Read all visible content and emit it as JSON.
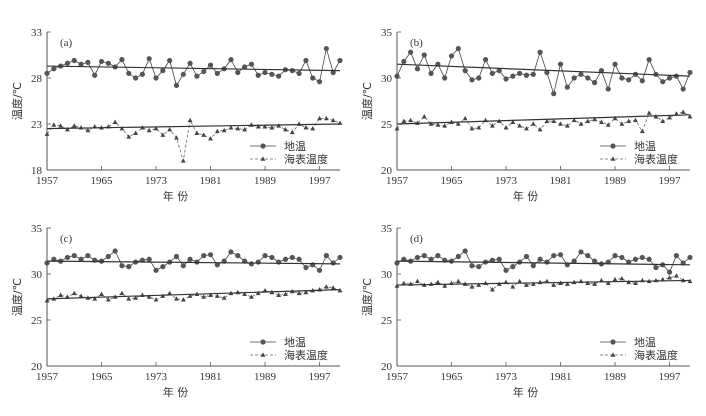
{
  "chart_data": [
    {
      "type": "line",
      "panel_label": "(a)",
      "ylabel": "温度/℃",
      "xlabel": "年  份",
      "ylim": [
        18,
        33
      ],
      "yticks": [
        18,
        23,
        28,
        33
      ],
      "xticks": [
        1957,
        1965,
        1973,
        1981,
        1989,
        1997
      ],
      "x": [
        1957,
        1958,
        1959,
        1960,
        1961,
        1962,
        1963,
        1964,
        1965,
        1966,
        1967,
        1968,
        1969,
        1970,
        1971,
        1972,
        1973,
        1974,
        1975,
        1976,
        1977,
        1978,
        1979,
        1980,
        1981,
        1982,
        1983,
        1984,
        1985,
        1986,
        1987,
        1988,
        1989,
        1990,
        1991,
        1992,
        1993,
        1994,
        1995,
        1996,
        1997,
        1998,
        1999,
        2000
      ],
      "series": [
        {
          "name": "地温",
          "marker": "circle",
          "trend": [
            29.3,
            28.8
          ],
          "values": [
            28.5,
            29.0,
            29.3,
            29.6,
            29.9,
            29.5,
            29.7,
            28.3,
            29.8,
            29.6,
            29.2,
            30.0,
            28.5,
            28.0,
            28.4,
            30.1,
            28.0,
            28.8,
            29.9,
            27.2,
            28.4,
            29.6,
            28.2,
            28.7,
            29.4,
            28.5,
            29.0,
            30.0,
            28.6,
            29.2,
            29.5,
            28.3,
            28.6,
            28.4,
            28.2,
            28.9,
            28.8,
            28.5,
            29.9,
            28.0,
            27.6,
            31.2,
            28.6,
            29.9
          ]
        },
        {
          "name": "海表温度",
          "marker": "triangle",
          "trend": [
            22.5,
            23.0
          ],
          "values": [
            21.9,
            22.9,
            22.8,
            22.4,
            22.8,
            22.6,
            22.3,
            22.7,
            22.6,
            22.7,
            23.2,
            22.5,
            21.6,
            22.0,
            22.6,
            22.3,
            22.5,
            21.8,
            22.4,
            21.5,
            19.0,
            23.4,
            22.0,
            21.8,
            21.4,
            22.2,
            22.3,
            22.6,
            22.5,
            22.4,
            22.9,
            22.7,
            22.7,
            22.6,
            22.8,
            22.4,
            22.1,
            23.0,
            22.6,
            22.5,
            23.6,
            23.6,
            23.4,
            23.1
          ]
        }
      ]
    },
    {
      "type": "line",
      "panel_label": "(b)",
      "ylabel": "温度/℃",
      "xlabel": "年  份",
      "ylim": [
        20,
        35
      ],
      "yticks": [
        20,
        25,
        30,
        35
      ],
      "xticks": [
        1957,
        1965,
        1973,
        1981,
        1989,
        1997
      ],
      "x": [
        1957,
        1958,
        1959,
        1960,
        1961,
        1962,
        1963,
        1964,
        1965,
        1966,
        1967,
        1968,
        1969,
        1970,
        1971,
        1972,
        1973,
        1974,
        1975,
        1976,
        1977,
        1978,
        1979,
        1980,
        1981,
        1982,
        1983,
        1984,
        1985,
        1986,
        1987,
        1988,
        1989,
        1990,
        1991,
        1992,
        1993,
        1994,
        1995,
        1996,
        1997,
        1998,
        1999,
        2000
      ],
      "series": [
        {
          "name": "地温",
          "marker": "circle",
          "trend": [
            31.5,
            30.2
          ],
          "values": [
            30.2,
            31.8,
            32.8,
            31.0,
            32.5,
            30.5,
            31.5,
            30.0,
            32.4,
            33.2,
            30.8,
            29.8,
            30.0,
            32.0,
            30.5,
            30.8,
            29.9,
            30.2,
            30.5,
            30.3,
            30.4,
            32.8,
            30.6,
            28.3,
            31.5,
            29.0,
            30.0,
            30.4,
            30.0,
            29.5,
            30.8,
            28.8,
            31.5,
            30.0,
            29.8,
            30.4,
            29.7,
            32.0,
            30.4,
            29.6,
            30.0,
            30.2,
            28.8,
            30.6
          ]
        },
        {
          "name": "海表温度",
          "marker": "triangle",
          "trend": [
            25.0,
            26.0
          ],
          "values": [
            24.5,
            25.3,
            25.4,
            25.1,
            25.8,
            25.0,
            24.9,
            24.8,
            25.2,
            25.0,
            25.6,
            24.5,
            24.6,
            25.4,
            24.8,
            25.3,
            24.6,
            25.2,
            24.8,
            24.5,
            25.0,
            24.4,
            25.3,
            25.3,
            25.0,
            24.8,
            25.4,
            25.0,
            25.3,
            25.5,
            25.2,
            24.9,
            25.6,
            25.0,
            25.3,
            25.4,
            24.2,
            26.2,
            25.8,
            25.3,
            25.7,
            26.1,
            26.3,
            25.8
          ]
        }
      ]
    },
    {
      "type": "line",
      "panel_label": "(c)",
      "ylabel": "温度/℃",
      "xlabel": "年  份",
      "ylim": [
        20,
        35
      ],
      "yticks": [
        20,
        25,
        30,
        35
      ],
      "xticks": [
        1957,
        1965,
        1973,
        1981,
        1989,
        1997
      ],
      "x": [
        1957,
        1958,
        1959,
        1960,
        1961,
        1962,
        1963,
        1964,
        1965,
        1966,
        1967,
        1968,
        1969,
        1970,
        1971,
        1972,
        1973,
        1974,
        1975,
        1976,
        1977,
        1978,
        1979,
        1980,
        1981,
        1982,
        1983,
        1984,
        1985,
        1986,
        1987,
        1988,
        1989,
        1990,
        1991,
        1992,
        1993,
        1994,
        1995,
        1996,
        1997,
        1998,
        1999,
        2000
      ],
      "series": [
        {
          "name": "地温",
          "marker": "circle",
          "trend": [
            31.4,
            31.1
          ],
          "values": [
            31.2,
            31.6,
            31.4,
            31.8,
            32.0,
            31.6,
            32.0,
            31.5,
            31.4,
            31.9,
            32.5,
            30.9,
            30.8,
            31.3,
            31.5,
            31.6,
            30.4,
            30.8,
            31.3,
            31.9,
            30.9,
            31.6,
            31.3,
            32.0,
            32.1,
            31.0,
            31.4,
            32.4,
            32.0,
            31.4,
            31.1,
            31.3,
            32.0,
            31.8,
            31.3,
            31.6,
            31.8,
            31.6,
            30.7,
            31.0,
            30.4,
            32.0,
            31.2,
            31.8
          ]
        },
        {
          "name": "海表温度",
          "marker": "triangle",
          "trend": [
            27.3,
            28.3
          ],
          "values": [
            27.1,
            27.3,
            27.7,
            27.5,
            27.9,
            27.6,
            27.4,
            27.3,
            27.8,
            27.2,
            27.5,
            27.9,
            27.3,
            27.4,
            27.7,
            27.5,
            27.2,
            27.6,
            27.9,
            27.3,
            27.2,
            27.6,
            27.8,
            27.5,
            27.7,
            27.6,
            27.4,
            27.9,
            28.0,
            27.8,
            27.5,
            27.9,
            28.2,
            28.0,
            27.7,
            27.8,
            28.1,
            27.9,
            28.0,
            28.2,
            28.3,
            28.6,
            28.5,
            28.2
          ]
        }
      ]
    },
    {
      "type": "line",
      "panel_label": "(d)",
      "ylabel": "温度/℃",
      "xlabel": "年  份",
      "ylim": [
        20,
        35
      ],
      "yticks": [
        20,
        25,
        30,
        35
      ],
      "xticks": [
        1957,
        1965,
        1973,
        1981,
        1989,
        1997
      ],
      "x": [
        1957,
        1958,
        1959,
        1960,
        1961,
        1962,
        1963,
        1964,
        1965,
        1966,
        1967,
        1968,
        1969,
        1970,
        1971,
        1972,
        1973,
        1974,
        1975,
        1976,
        1977,
        1978,
        1979,
        1980,
        1981,
        1982,
        1983,
        1984,
        1985,
        1986,
        1987,
        1988,
        1989,
        1990,
        1991,
        1992,
        1993,
        1994,
        1995,
        1996,
        1997,
        1998,
        1999,
        2000
      ],
      "series": [
        {
          "name": "地温",
          "marker": "circle",
          "trend": [
            31.4,
            31.0
          ],
          "values": [
            31.2,
            31.6,
            31.4,
            31.8,
            32.0,
            31.6,
            32.0,
            31.5,
            31.4,
            31.9,
            32.5,
            30.9,
            30.8,
            31.3,
            31.5,
            31.6,
            30.4,
            30.8,
            31.3,
            31.9,
            30.9,
            31.6,
            31.3,
            32.0,
            32.1,
            31.0,
            31.4,
            32.4,
            32.0,
            31.4,
            31.1,
            31.3,
            32.0,
            31.8,
            31.3,
            31.6,
            31.8,
            31.6,
            30.7,
            31.0,
            30.2,
            32.0,
            31.2,
            31.8
          ]
        },
        {
          "name": "海表温度",
          "marker": "triangle",
          "trend": [
            28.8,
            29.3
          ],
          "values": [
            28.7,
            29.0,
            28.9,
            29.2,
            28.8,
            28.9,
            29.1,
            28.7,
            29.0,
            29.2,
            28.9,
            28.6,
            28.8,
            29.0,
            28.3,
            28.9,
            29.1,
            28.6,
            29.2,
            28.8,
            28.9,
            29.1,
            29.2,
            28.8,
            29.0,
            28.9,
            29.1,
            29.2,
            29.0,
            28.9,
            29.3,
            29.0,
            29.4,
            29.5,
            29.1,
            29.0,
            29.3,
            29.2,
            29.3,
            29.4,
            29.6,
            29.8,
            29.3,
            29.2
          ]
        }
      ]
    }
  ]
}
